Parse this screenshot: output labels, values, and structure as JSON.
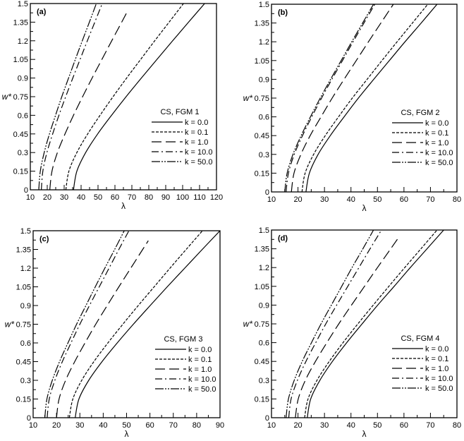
{
  "chart_data": [
    {
      "type": "line",
      "panel_label": "(a)",
      "xlabel": "λ",
      "ylabel": "w*",
      "xlim": [
        10,
        120
      ],
      "ylim": [
        0,
        1.5
      ],
      "xticks": [
        10,
        20,
        30,
        40,
        50,
        60,
        70,
        80,
        90,
        100,
        110,
        120
      ],
      "yticks": [
        0,
        0.15,
        0.3,
        0.45,
        0.6,
        0.75,
        0.9,
        1.05,
        1.2,
        1.35,
        1.5
      ],
      "legend_title": "CS, FGM 1",
      "legend_position": "center-right",
      "series": [
        {
          "name": "k = 0.0",
          "style": "solid",
          "w": [
            0,
            0.15,
            0.3,
            0.45,
            0.6,
            0.75,
            0.9,
            1.05,
            1.2,
            1.35,
            1.5
          ],
          "lambda": [
            35.5,
            37.5,
            42.7,
            49.8,
            58.0,
            66.6,
            75.6,
            84.8,
            94.1,
            103.5,
            113.0
          ]
        },
        {
          "name": "k = 0.1",
          "style": "short-dash",
          "w": [
            0,
            0.15,
            0.3,
            0.45,
            0.6,
            0.75,
            0.9,
            1.05,
            1.2,
            1.35,
            1.5
          ],
          "lambda": [
            31,
            32.8,
            37.5,
            43.9,
            51.2,
            58.9,
            66.9,
            75.2,
            83.5,
            92.0,
            100.5
          ]
        },
        {
          "name": "k = 1.0",
          "style": "long-dash",
          "w": [
            0,
            0.15,
            0.3,
            0.45,
            0.6,
            0.75,
            0.9,
            1.05,
            1.2,
            1.35,
            1.44
          ],
          "lambda": [
            21.5,
            22.8,
            26.0,
            30.5,
            35.5,
            40.9,
            46.5,
            52.3,
            58.1,
            64.0,
            67.5
          ]
        },
        {
          "name": "k = 10.0",
          "style": "dash-dot",
          "w": [
            0,
            0.15,
            0.3,
            0.45,
            0.6,
            0.75,
            0.9,
            1.05,
            1.2,
            1.35,
            1.5
          ],
          "lambda": [
            16.5,
            17.4,
            19.8,
            23.2,
            26.9,
            30.9,
            35.1,
            39.4,
            43.7,
            48.1,
            52.5
          ]
        },
        {
          "name": "k = 50.0",
          "style": "dash-dot-dot",
          "w": [
            0,
            0.15,
            0.3,
            0.45,
            0.6,
            0.75,
            0.9,
            1.05,
            1.2,
            1.35,
            1.5
          ],
          "lambda": [
            15,
            15.9,
            18.2,
            21.3,
            24.9,
            28.6,
            32.6,
            36.6,
            40.7,
            44.9,
            49
          ]
        }
      ]
    },
    {
      "type": "line",
      "panel_label": "(b)",
      "xlabel": "λ",
      "ylabel": "w*",
      "xlim": [
        10,
        80
      ],
      "ylim": [
        0,
        1.5
      ],
      "xticks": [
        10,
        20,
        30,
        40,
        50,
        60,
        70,
        80
      ],
      "yticks": [
        0,
        0.15,
        0.3,
        0.45,
        0.6,
        0.75,
        0.9,
        1.05,
        1.2,
        1.35,
        1.5
      ],
      "legend_title": "CS, FGM 2",
      "legend_position": "center-right",
      "series": [
        {
          "name": "k = 0.0",
          "style": "solid",
          "w": [
            0,
            0.15,
            0.3,
            0.45,
            0.6,
            0.75,
            0.9,
            1.05,
            1.2,
            1.35,
            1.5
          ],
          "lambda": [
            23,
            24.3,
            27.6,
            32.2,
            37.4,
            42.8,
            48.6,
            54.5,
            60.4,
            66.5,
            72.5
          ]
        },
        {
          "name": "k = 0.1",
          "style": "short-dash",
          "w": [
            0,
            0.15,
            0.3,
            0.45,
            0.6,
            0.75,
            0.9,
            1.05,
            1.2,
            1.35,
            1.5
          ],
          "lambda": [
            21.5,
            22.7,
            25.9,
            30.3,
            35.3,
            40.5,
            46.1,
            51.7,
            57.4,
            63.2,
            69
          ]
        },
        {
          "name": "k = 1.0",
          "style": "long-dash",
          "w": [
            0,
            0.15,
            0.3,
            0.45,
            0.6,
            0.75,
            0.9,
            1.05,
            1.2,
            1.35,
            1.5
          ],
          "lambda": [
            17.5,
            18.5,
            21.1,
            24.6,
            28.7,
            32.9,
            37.4,
            42.0,
            46.6,
            51.3,
            56
          ]
        },
        {
          "name": "k = 10.0",
          "style": "dash-dot",
          "w": [
            0,
            0.15,
            0.3,
            0.45,
            0.6,
            0.75,
            0.9,
            1.05,
            1.2,
            1.35,
            1.5
          ],
          "lambda": [
            15.5,
            16.4,
            18.6,
            21.7,
            25.2,
            28.9,
            32.8,
            36.8,
            40.8,
            44.9,
            49
          ]
        },
        {
          "name": "k = 50.0",
          "style": "dash-dot-dot",
          "w": [
            0,
            0.15,
            0.3,
            0.45,
            0.6,
            0.75,
            0.9,
            1.05,
            1.2,
            1.35,
            1.5
          ],
          "lambda": [
            15,
            15.9,
            18.1,
            21.2,
            24.7,
            28.4,
            32.3,
            36.3,
            40.3,
            44.4,
            48.5
          ]
        }
      ]
    },
    {
      "type": "line",
      "panel_label": "(c)",
      "xlabel": "λ",
      "ylabel": "w*",
      "xlim": [
        10,
        90
      ],
      "ylim": [
        0,
        1.5
      ],
      "xticks": [
        10,
        20,
        30,
        40,
        50,
        60,
        70,
        80,
        90
      ],
      "yticks": [
        0,
        0.15,
        0.3,
        0.45,
        0.6,
        0.75,
        0.9,
        1.05,
        1.2,
        1.35,
        1.5
      ],
      "legend_title": "CS, FGM 3",
      "legend_position": "center-right",
      "series": [
        {
          "name": "k = 0.0",
          "style": "solid",
          "w": [
            0,
            0.15,
            0.3,
            0.45,
            0.6,
            0.75,
            0.9,
            1.05,
            1.2,
            1.35,
            1.5
          ],
          "lambda": [
            28,
            29.6,
            33.8,
            39.5,
            46.0,
            52.9,
            60.1,
            67.4,
            74.9,
            82.4,
            90
          ]
        },
        {
          "name": "k = 0.1",
          "style": "short-dash",
          "w": [
            0,
            0.15,
            0.3,
            0.45,
            0.6,
            0.75,
            0.9,
            1.05,
            1.2,
            1.35,
            1.5
          ],
          "lambda": [
            25.5,
            27.0,
            30.8,
            36.0,
            42.0,
            48.4,
            55.0,
            61.8,
            68.6,
            75.5,
            82.5
          ]
        },
        {
          "name": "k = 1.0",
          "style": "long-dash",
          "w": [
            0,
            0.15,
            0.3,
            0.45,
            0.6,
            0.75,
            0.9,
            1.05,
            1.2,
            1.35,
            1.42
          ],
          "lambda": [
            20,
            21.1,
            23.9,
            27.8,
            32.2,
            36.8,
            41.7,
            46.7,
            51.8,
            56.9,
            59.3
          ]
        },
        {
          "name": "k = 10.0",
          "style": "dash-dot",
          "w": [
            0,
            0.15,
            0.3,
            0.45,
            0.6,
            0.75,
            0.9,
            1.05,
            1.2,
            1.35,
            1.5
          ],
          "lambda": [
            16,
            16.9,
            19.3,
            22.5,
            26.2,
            30.0,
            34.1,
            38.3,
            42.5,
            46.7,
            51
          ]
        },
        {
          "name": "k = 50.0",
          "style": "dash-dot-dot",
          "w": [
            0,
            0.15,
            0.3,
            0.45,
            0.6,
            0.75,
            0.9,
            1.05,
            1.2,
            1.35,
            1.5
          ],
          "lambda": [
            15,
            15.9,
            18.2,
            21.3,
            24.9,
            28.6,
            32.6,
            36.6,
            40.7,
            44.9,
            49
          ]
        }
      ]
    },
    {
      "type": "line",
      "panel_label": "(d)",
      "xlabel": "λ",
      "ylabel": "w*",
      "xlim": [
        10,
        80
      ],
      "ylim": [
        0,
        1.5
      ],
      "xticks": [
        10,
        20,
        30,
        40,
        50,
        60,
        70,
        80
      ],
      "yticks": [
        0,
        0.15,
        0.3,
        0.45,
        0.6,
        0.75,
        0.9,
        1.05,
        1.2,
        1.35,
        1.5
      ],
      "legend_title": "CS, FGM 4",
      "legend_position": "center-right",
      "series": [
        {
          "name": "k = 0.0",
          "style": "solid",
          "w": [
            0,
            0.15,
            0.3,
            0.45,
            0.6,
            0.75,
            0.9,
            1.05,
            1.2,
            1.35,
            1.5
          ],
          "lambda": [
            23.5,
            24.8,
            28.3,
            33.0,
            38.4,
            44.2,
            50.1,
            56.3,
            62.4,
            68.7,
            75
          ]
        },
        {
          "name": "k = 0.1",
          "style": "short-dash",
          "w": [
            0,
            0.15,
            0.3,
            0.45,
            0.6,
            0.75,
            0.9,
            1.05,
            1.2,
            1.35,
            1.5
          ],
          "lambda": [
            22.5,
            23.8,
            27.2,
            31.8,
            37.0,
            42.6,
            48.4,
            54.3,
            60.3,
            66.4,
            72.5
          ]
        },
        {
          "name": "k = 1.0",
          "style": "long-dash",
          "w": [
            0,
            0.15,
            0.3,
            0.45,
            0.6,
            0.75,
            0.9,
            1.05,
            1.2,
            1.35,
            1.45
          ],
          "lambda": [
            19,
            20.1,
            22.8,
            26.6,
            30.9,
            35.4,
            40.2,
            45.1,
            50.0,
            55.0,
            58.3
          ]
        },
        {
          "name": "k = 10.0",
          "style": "dash-dot",
          "w": [
            0,
            0.15,
            0.3,
            0.45,
            0.6,
            0.75,
            0.9,
            1.05,
            1.2,
            1.35,
            1.5
          ],
          "lambda": [
            16.5,
            17.4,
            19.8,
            23.0,
            26.7,
            30.5,
            34.6,
            38.8,
            43.0,
            47.2,
            51.5
          ]
        },
        {
          "name": "k = 50.0",
          "style": "dash-dot-dot",
          "w": [
            0,
            0.15,
            0.3,
            0.45,
            0.6,
            0.75,
            0.9,
            1.05,
            1.2,
            1.35,
            1.5
          ],
          "lambda": [
            15.5,
            16.4,
            18.6,
            21.6,
            25.1,
            28.7,
            32.6,
            36.5,
            40.4,
            44.5,
            48.5
          ]
        }
      ]
    }
  ],
  "line_color": "#000000"
}
